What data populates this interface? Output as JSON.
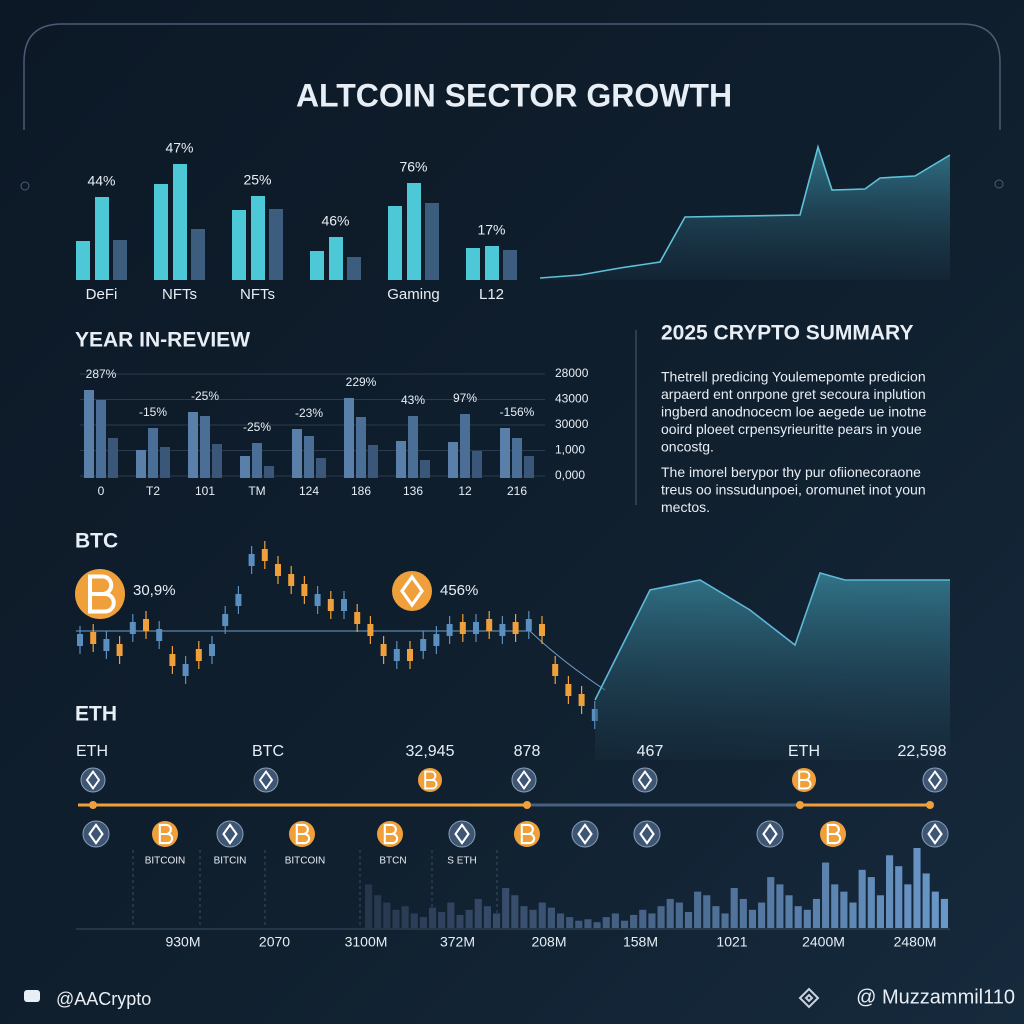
{
  "title": "ALTCOIN SECTOR GROWTH",
  "chart_data": [
    {
      "type": "bar",
      "categories": [
        "DeFi",
        "NFTs",
        "NFTs",
        null,
        "Gaming",
        "L12"
      ],
      "labels": [
        "44%",
        "47%",
        "25%",
        "46%",
        "76%",
        "17%"
      ],
      "series": [
        {
          "color": "#4cc8d6",
          "values": [
            39,
            96,
            70,
            29,
            74,
            32
          ]
        },
        {
          "color": "#4cc8d6",
          "values": [
            83,
            116,
            84,
            43,
            97,
            34
          ]
        },
        {
          "color": "#3d5d7e",
          "values": [
            40,
            51,
            71,
            23,
            77,
            30
          ]
        }
      ],
      "ylim": [
        0,
        150
      ]
    },
    {
      "type": "area",
      "x": [
        0,
        40,
        80,
        120,
        145,
        260,
        278,
        292,
        325,
        340,
        375,
        410
      ],
      "values": [
        2,
        5,
        12,
        18,
        63,
        65,
        133,
        90,
        91,
        102,
        104,
        125
      ],
      "xlim": [
        0,
        410
      ],
      "ylim": [
        0,
        140
      ],
      "color": "#5fc3d8"
    },
    {
      "type": "bar",
      "title": "YEAR IN-REVIEW",
      "categories": [
        "0",
        "T2",
        "101",
        "TM",
        "124",
        "186",
        "136",
        "12",
        "216"
      ],
      "labels": [
        "287%",
        "-15%",
        "-25%",
        "-25%",
        "-23%",
        "229%",
        "43%",
        "97%",
        "-156%"
      ],
      "series": [
        {
          "color": "#5a80aa",
          "values": [
            88,
            28,
            66,
            22,
            49,
            80,
            37,
            36,
            50
          ]
        },
        {
          "color": "#4b6e96",
          "values": [
            78,
            50,
            62,
            35,
            42,
            61,
            62,
            64,
            40
          ]
        },
        {
          "color": "#3a5779",
          "values": [
            40,
            31,
            34,
            12,
            20,
            33,
            18,
            27,
            22
          ]
        }
      ],
      "ylim": [
        0,
        100
      ],
      "axis_labels": [
        "28000",
        "43000",
        "30000",
        "1,000",
        "0,000"
      ]
    },
    {
      "type": "candlestick",
      "title": "BTC",
      "annotations": [
        "30,9%",
        "456%"
      ],
      "open": [
        114,
        128,
        109,
        116,
        126,
        141,
        119,
        106,
        84,
        111,
        104,
        134,
        154,
        194,
        211,
        196,
        186,
        176,
        154,
        161,
        149,
        148,
        136,
        116,
        99,
        111,
        109,
        114,
        124,
        138,
        126,
        141,
        124,
        138,
        129,
        136,
        96,
        76,
        66,
        39
      ],
      "high": [
        134,
        136,
        129,
        124,
        146,
        149,
        139,
        114,
        104,
        119,
        124,
        154,
        174,
        214,
        219,
        204,
        194,
        184,
        174,
        169,
        169,
        156,
        144,
        124,
        119,
        119,
        129,
        134,
        144,
        146,
        146,
        149,
        144,
        146,
        149,
        144,
        104,
        84,
        74,
        59
      ],
      "low": [
        106,
        108,
        101,
        96,
        118,
        121,
        111,
        86,
        76,
        91,
        96,
        126,
        146,
        186,
        191,
        176,
        166,
        156,
        146,
        141,
        141,
        128,
        116,
        96,
        91,
        91,
        101,
        106,
        116,
        118,
        118,
        121,
        116,
        118,
        121,
        116,
        76,
        56,
        46,
        31
      ],
      "close": [
        126,
        116,
        121,
        104,
        138,
        129,
        131,
        94,
        96,
        99,
        116,
        146,
        166,
        206,
        199,
        184,
        174,
        164,
        166,
        149,
        161,
        136,
        124,
        104,
        111,
        99,
        121,
        126,
        136,
        126,
        138,
        129,
        136,
        126,
        141,
        124,
        84,
        64,
        54,
        51
      ],
      "up_color": "#5b8fc0",
      "down_color": "#f0a03a",
      "ylim": [
        0,
        240
      ]
    },
    {
      "type": "area",
      "x": [
        0,
        55,
        105,
        155,
        200,
        225,
        250,
        355
      ],
      "values": [
        60,
        170,
        180,
        150,
        115,
        187,
        180,
        180
      ],
      "xlim": [
        0,
        355
      ],
      "ylim": [
        0,
        240
      ],
      "color": "#5fb8d8"
    },
    {
      "type": "bar",
      "values": [
        60,
        45,
        35,
        25,
        30,
        20,
        15,
        28,
        22,
        35,
        18,
        25,
        40,
        30,
        20,
        55,
        45,
        30,
        25,
        35,
        28,
        20,
        15,
        10,
        12,
        8,
        15,
        20,
        10,
        18,
        25,
        20,
        30,
        40,
        35,
        22,
        50,
        45,
        30,
        20,
        55,
        40,
        25,
        35,
        70,
        60,
        45,
        30,
        25,
        40,
        90,
        60,
        50,
        35,
        80,
        70,
        45,
        100,
        85,
        60,
        110,
        75,
        50,
        40
      ],
      "colors": [
        "#27364d",
        "#6a97c8"
      ],
      "ylim": [
        0,
        110
      ],
      "axis_labels": [
        "930M",
        "2070",
        "3100M",
        "372M",
        "208M",
        "158M",
        "1021",
        "2400M",
        "2480M"
      ]
    }
  ],
  "summary": {
    "title": "2025 CRYPTO SUMMARY",
    "paragraphs": [
      [
        "Thetrell predicing Youlemepomte predicion",
        "arpaerd ent onrpone gret secoura inplution",
        "ingberd anodnocecm loe aegede ue inotne",
        "ooird ploeet crpensyrieuritte pears in youe",
        "oncostg."
      ],
      [
        "The imorel berypor thy pur ofiionecoraone",
        "treus oo inssudunpoei, oromunet inot youn",
        "mectos."
      ]
    ]
  },
  "timeline": {
    "title": "ETH",
    "top_labels": [
      "ETH",
      "BTC",
      "32,945",
      "878",
      "467",
      "ETH",
      "22,598"
    ],
    "bottom_labels": [
      "BITCOIN",
      "BITCIN",
      "BITCOIN",
      "BTCN",
      "S ETH"
    ]
  },
  "footer": {
    "left": "@AACrypto",
    "right": "@ Muzzammil110"
  }
}
